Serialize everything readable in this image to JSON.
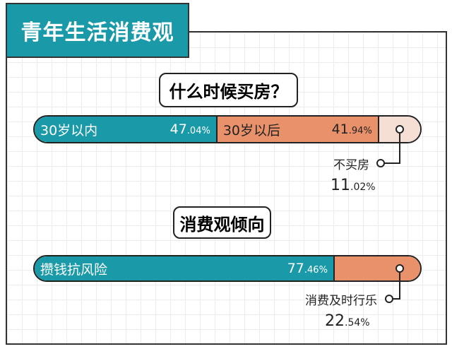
{
  "title": "青年生活消费观",
  "chart_data": [
    {
      "type": "bar",
      "title": "什么时候买房？",
      "orientation": "horizontal-stacked",
      "categories": [
        "30岁以内",
        "30岁以后",
        "不买房"
      ],
      "values": [
        47.04,
        41.94,
        11.02
      ],
      "labels": {
        "a_int": "47",
        "a_dec": ".04%",
        "b_int": "41",
        "b_dec": ".94%",
        "c_int": "11",
        "c_dec": ".02%"
      },
      "colors": [
        "#1a9aa8",
        "#e9916a",
        "#f5dfd4"
      ]
    },
    {
      "type": "bar",
      "title": "消费观倾向",
      "orientation": "horizontal-stacked",
      "categories": [
        "攒钱抗风险",
        "消费及时行乐"
      ],
      "values": [
        77.46,
        22.54
      ],
      "labels": {
        "a_int": "77",
        "a_dec": ".46%",
        "b_int": "22",
        "b_dec": ".54%"
      },
      "colors": [
        "#1a9aa8",
        "#e9916a"
      ]
    }
  ]
}
